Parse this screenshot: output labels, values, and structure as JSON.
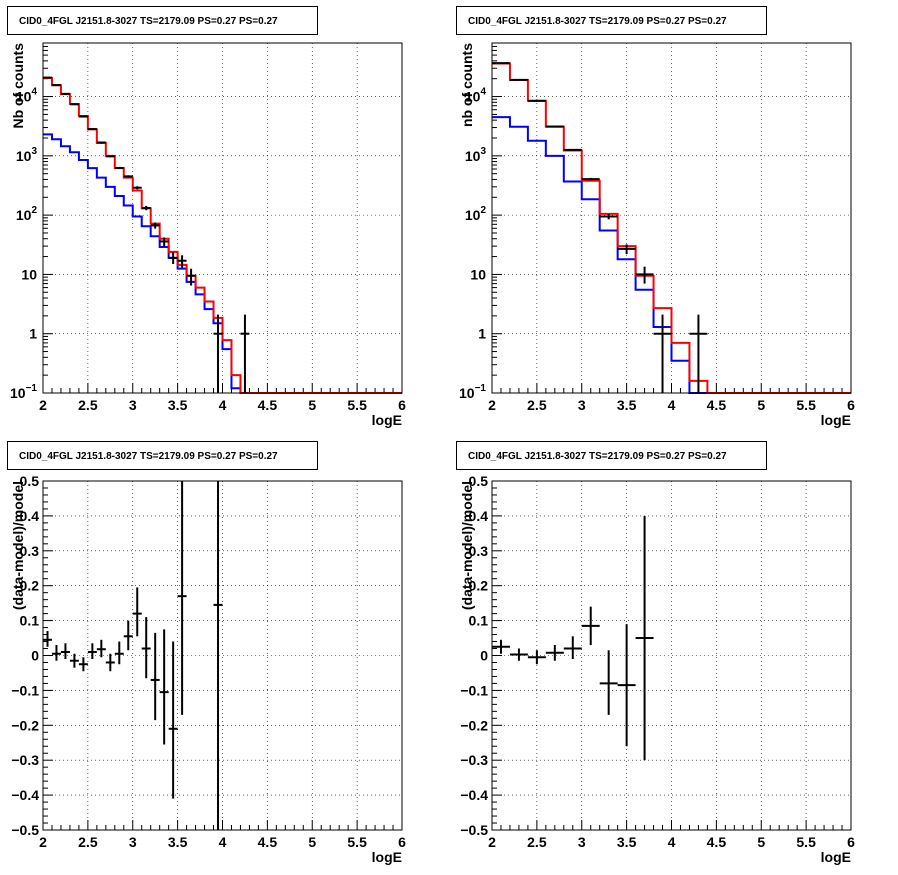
{
  "chart_data": [
    {
      "id": "top-left",
      "type": "line",
      "title": "CID0_4FGL J2151.8-3027 TS=2179.09 PS=0.27 PS=0.27",
      "xlabel": "logE",
      "ylabel": "Nb of counts",
      "xlim": [
        2,
        6
      ],
      "ylim": [
        0.1,
        80000
      ],
      "yscale": "log",
      "grid": true,
      "x_ticks": [
        "2",
        "2.5",
        "3",
        "3.5",
        "4",
        "4.5",
        "5",
        "5.5",
        "6"
      ],
      "y_ticks": [
        {
          "value": 0.1,
          "base": "10",
          "exp": "−1"
        },
        {
          "value": 1,
          "base": "1",
          "exp": ""
        },
        {
          "value": 10,
          "base": "10",
          "exp": ""
        },
        {
          "value": 100,
          "base": "10",
          "exp": "2"
        },
        {
          "value": 1000,
          "base": "10",
          "exp": "3"
        },
        {
          "value": 10000,
          "base": "10",
          "exp": "4"
        }
      ],
      "bin_edges": [
        2.0,
        2.1,
        2.2,
        2.3,
        2.4,
        2.5,
        2.6,
        2.7,
        2.8,
        2.9,
        3.0,
        3.1,
        3.2,
        3.3,
        3.4,
        3.5,
        3.6,
        3.7,
        3.8,
        3.9,
        4.0,
        4.1,
        4.2,
        4.3,
        4.4,
        4.5,
        4.6,
        4.7,
        4.8,
        4.9,
        5.0,
        5.1,
        5.2,
        5.3,
        5.4,
        5.5,
        5.6,
        5.7,
        5.8,
        5.9,
        6.0
      ],
      "series": [
        {
          "color": "#0000ff",
          "values": [
            2300,
            1900,
            1450,
            1150,
            850,
            620,
            430,
            300,
            210,
            145,
            95,
            65,
            44,
            29,
            19,
            12.5,
            7.5,
            4.6,
            2.6,
            1.5,
            0.55,
            0.12,
            0.1,
            0.1,
            0.1,
            0.1,
            0.1,
            0.1,
            0.1,
            0.1,
            0.1,
            0.1,
            0.1,
            0.1,
            0.1,
            0.1,
            0.1,
            0.1,
            0.1,
            0.1
          ]
        },
        {
          "color": "#ff0000",
          "values": [
            20500,
            15500,
            11000,
            7500,
            4700,
            2800,
            1650,
            1000,
            620,
            430,
            260,
            130,
            72,
            40,
            24,
            14.5,
            9.5,
            6,
            3.5,
            1.85,
            0.78,
            0.2,
            0.1,
            0.1,
            0.1,
            0.1,
            0.1,
            0.1,
            0.1,
            0.1,
            0.1,
            0.1,
            0.1,
            0.1,
            0.1,
            0.1,
            0.1,
            0.1,
            0.1,
            0.1
          ]
        }
      ],
      "data_points": [
        {
          "x": 2.05,
          "y": 20900,
          "xerr": 0.05,
          "ylo": 20760,
          "yhi": 21040
        },
        {
          "x": 2.15,
          "y": 15600,
          "xerr": 0.05,
          "ylo": 15480,
          "yhi": 15720
        },
        {
          "x": 2.25,
          "y": 11100,
          "xerr": 0.05,
          "ylo": 11000,
          "yhi": 11200
        },
        {
          "x": 2.35,
          "y": 7400,
          "xerr": 0.05,
          "ylo": 7320,
          "yhi": 7480
        },
        {
          "x": 2.45,
          "y": 4600,
          "xerr": 0.05,
          "ylo": 4530,
          "yhi": 4670
        },
        {
          "x": 2.55,
          "y": 2830,
          "xerr": 0.05,
          "ylo": 2780,
          "yhi": 2880
        },
        {
          "x": 2.65,
          "y": 1680,
          "xerr": 0.05,
          "ylo": 1640,
          "yhi": 1720
        },
        {
          "x": 2.75,
          "y": 980,
          "xerr": 0.05,
          "ylo": 950,
          "yhi": 1010
        },
        {
          "x": 2.85,
          "y": 625,
          "xerr": 0.05,
          "ylo": 600,
          "yhi": 650
        },
        {
          "x": 2.95,
          "y": 450,
          "xerr": 0.05,
          "ylo": 430,
          "yhi": 470
        },
        {
          "x": 3.05,
          "y": 290,
          "xerr": 0.05,
          "ylo": 273,
          "yhi": 307
        },
        {
          "x": 3.15,
          "y": 132,
          "xerr": 0.05,
          "ylo": 121,
          "yhi": 143
        },
        {
          "x": 3.25,
          "y": 67,
          "xerr": 0.05,
          "ylo": 59,
          "yhi": 75
        },
        {
          "x": 3.35,
          "y": 36,
          "xerr": 0.05,
          "ylo": 30,
          "yhi": 42
        },
        {
          "x": 3.45,
          "y": 19,
          "xerr": 0.05,
          "ylo": 15,
          "yhi": 23.5
        },
        {
          "x": 3.55,
          "y": 17,
          "xerr": 0.05,
          "ylo": 13,
          "yhi": 21
        },
        {
          "x": 3.65,
          "y": 9.5,
          "xerr": 0.05,
          "ylo": 6.5,
          "yhi": 12.5
        },
        {
          "x": 3.95,
          "y": 1,
          "xerr": 0.05,
          "ylo": 0.1,
          "yhi": 2.1
        },
        {
          "x": 4.25,
          "y": 1,
          "xerr": 0.05,
          "ylo": 0.1,
          "yhi": 2.1
        }
      ]
    },
    {
      "id": "top-right",
      "type": "line",
      "title": "CID0_4FGL J2151.8-3027 TS=2179.09 PS=0.27 PS=0.27",
      "xlabel": "logE",
      "ylabel": "nb of counts",
      "xlim": [
        2,
        6
      ],
      "ylim": [
        0.1,
        80000
      ],
      "yscale": "log",
      "grid": true,
      "x_ticks": [
        "2",
        "2.5",
        "3",
        "3.5",
        "4",
        "4.5",
        "5",
        "5.5",
        "6"
      ],
      "y_ticks": [
        {
          "value": 0.1,
          "base": "10",
          "exp": "−1"
        },
        {
          "value": 1,
          "base": "1",
          "exp": ""
        },
        {
          "value": 10,
          "base": "10",
          "exp": ""
        },
        {
          "value": 100,
          "base": "10",
          "exp": "2"
        },
        {
          "value": 1000,
          "base": "10",
          "exp": "3"
        },
        {
          "value": 10000,
          "base": "10",
          "exp": "4"
        }
      ],
      "bin_edges": [
        2.0,
        2.2,
        2.4,
        2.6,
        2.8,
        3.0,
        3.2,
        3.4,
        3.6,
        3.8,
        4.0,
        4.2,
        4.4,
        4.6,
        4.8,
        5.0,
        5.2,
        5.4,
        5.6,
        5.8,
        6.0
      ],
      "series": [
        {
          "color": "#0000ff",
          "values": [
            4500,
            3100,
            1800,
            1000,
            370,
            185,
            55,
            18,
            5.5,
            1.3,
            0.35,
            0.1,
            0.1,
            0.1,
            0.1,
            0.1,
            0.1,
            0.1,
            0.1,
            0.1
          ]
        },
        {
          "color": "#ff0000",
          "values": [
            36000,
            19000,
            8500,
            3100,
            1230,
            380,
            105,
            30,
            9.5,
            2.7,
            0.7,
            0.16,
            0.1,
            0.1,
            0.1,
            0.1,
            0.1,
            0.1,
            0.1,
            0.1
          ]
        }
      ],
      "data_points": [
        {
          "x": 2.1,
          "y": 36700,
          "xerr": 0.1,
          "ylo": 36500,
          "yhi": 36900
        },
        {
          "x": 2.3,
          "y": 19100,
          "xerr": 0.1,
          "ylo": 18960,
          "yhi": 19240
        },
        {
          "x": 2.5,
          "y": 8440,
          "xerr": 0.1,
          "ylo": 8350,
          "yhi": 8530
        },
        {
          "x": 2.7,
          "y": 3130,
          "xerr": 0.1,
          "ylo": 3080,
          "yhi": 3180
        },
        {
          "x": 2.9,
          "y": 1260,
          "xerr": 0.1,
          "ylo": 1225,
          "yhi": 1295
        },
        {
          "x": 3.1,
          "y": 405,
          "xerr": 0.1,
          "ylo": 385,
          "yhi": 425
        },
        {
          "x": 3.3,
          "y": 95,
          "xerr": 0.1,
          "ylo": 85,
          "yhi": 105
        },
        {
          "x": 3.5,
          "y": 27,
          "xerr": 0.1,
          "ylo": 22,
          "yhi": 32
        },
        {
          "x": 3.7,
          "y": 10,
          "xerr": 0.1,
          "ylo": 7,
          "yhi": 13.5
        },
        {
          "x": 3.9,
          "y": 1,
          "xerr": 0.1,
          "ylo": 0.1,
          "yhi": 2.1
        },
        {
          "x": 4.3,
          "y": 1,
          "xerr": 0.1,
          "ylo": 0.1,
          "yhi": 2.1
        }
      ]
    },
    {
      "id": "bottom-left",
      "type": "scatter",
      "title": "CID0_4FGL J2151.8-3027 TS=2179.09 PS=0.27 PS=0.27",
      "xlabel": "logE",
      "ylabel": "(data-model)/model",
      "xlim": [
        2,
        6
      ],
      "ylim": [
        -0.5,
        0.5
      ],
      "yscale": "linear",
      "grid": true,
      "x_ticks": [
        "2",
        "2.5",
        "3",
        "3.5",
        "4",
        "4.5",
        "5",
        "5.5",
        "6"
      ],
      "y_ticks": [
        "−0.5",
        "−0.4",
        "−0.3",
        "−0.2",
        "−0.1",
        "0",
        "0.1",
        "0.2",
        "0.3",
        "0.4",
        "0.5"
      ],
      "data_points": [
        {
          "x": 2.05,
          "y": 0.045,
          "xerr": 0.05,
          "ylo": 0.025,
          "yhi": 0.07
        },
        {
          "x": 2.15,
          "y": 0.005,
          "xerr": 0.05,
          "ylo": -0.015,
          "yhi": 0.03
        },
        {
          "x": 2.25,
          "y": 0.01,
          "xerr": 0.05,
          "ylo": -0.01,
          "yhi": 0.035
        },
        {
          "x": 2.35,
          "y": -0.015,
          "xerr": 0.05,
          "ylo": -0.035,
          "yhi": 0.005
        },
        {
          "x": 2.45,
          "y": -0.025,
          "xerr": 0.05,
          "ylo": -0.045,
          "yhi": -0.005
        },
        {
          "x": 2.55,
          "y": 0.01,
          "xerr": 0.05,
          "ylo": -0.01,
          "yhi": 0.035
        },
        {
          "x": 2.65,
          "y": 0.018,
          "xerr": 0.05,
          "ylo": -0.005,
          "yhi": 0.045
        },
        {
          "x": 2.75,
          "y": -0.02,
          "xerr": 0.05,
          "ylo": -0.045,
          "yhi": 0.005
        },
        {
          "x": 2.85,
          "y": 0.005,
          "xerr": 0.05,
          "ylo": -0.025,
          "yhi": 0.04
        },
        {
          "x": 2.95,
          "y": 0.055,
          "xerr": 0.05,
          "ylo": 0.015,
          "yhi": 0.1
        },
        {
          "x": 3.05,
          "y": 0.12,
          "xerr": 0.05,
          "ylo": 0.055,
          "yhi": 0.195
        },
        {
          "x": 3.15,
          "y": 0.02,
          "xerr": 0.05,
          "ylo": -0.065,
          "yhi": 0.11
        },
        {
          "x": 3.25,
          "y": -0.07,
          "xerr": 0.05,
          "ylo": -0.185,
          "yhi": 0.065
        },
        {
          "x": 3.35,
          "y": -0.105,
          "xerr": 0.05,
          "ylo": -0.255,
          "yhi": 0.075
        },
        {
          "x": 3.45,
          "y": -0.21,
          "xerr": 0.05,
          "ylo": -0.41,
          "yhi": 0.04
        },
        {
          "x": 3.55,
          "y": 0.17,
          "xerr": 0.05,
          "ylo": -0.17,
          "yhi": 0.5
        },
        {
          "x": 3.95,
          "y": 0.145,
          "xerr": 0.05,
          "ylo": -0.5,
          "yhi": 0.5
        }
      ]
    },
    {
      "id": "bottom-right",
      "type": "scatter",
      "title": "CID0_4FGL J2151.8-3027 TS=2179.09 PS=0.27 PS=0.27",
      "xlabel": "logE",
      "ylabel": "(data-model)/model",
      "xlim": [
        2,
        6
      ],
      "ylim": [
        -0.5,
        0.5
      ],
      "yscale": "linear",
      "grid": true,
      "x_ticks": [
        "2",
        "2.5",
        "3",
        "3.5",
        "4",
        "4.5",
        "5",
        "5.5",
        "6"
      ],
      "y_ticks": [
        "−0.5",
        "−0.4",
        "−0.3",
        "−0.2",
        "−0.1",
        "0",
        "0.1",
        "0.2",
        "0.3",
        "0.4",
        "0.5"
      ],
      "data_points": [
        {
          "x": 2.1,
          "y": 0.025,
          "xerr": 0.1,
          "ylo": 0.005,
          "yhi": 0.045
        },
        {
          "x": 2.3,
          "y": 0.003,
          "xerr": 0.1,
          "ylo": -0.015,
          "yhi": 0.02
        },
        {
          "x": 2.5,
          "y": -0.005,
          "xerr": 0.1,
          "ylo": -0.025,
          "yhi": 0.015
        },
        {
          "x": 2.7,
          "y": 0.008,
          "xerr": 0.1,
          "ylo": -0.015,
          "yhi": 0.03
        },
        {
          "x": 2.9,
          "y": 0.02,
          "xerr": 0.1,
          "ylo": -0.01,
          "yhi": 0.055
        },
        {
          "x": 3.1,
          "y": 0.085,
          "xerr": 0.1,
          "ylo": 0.03,
          "yhi": 0.14
        },
        {
          "x": 3.3,
          "y": -0.08,
          "xerr": 0.1,
          "ylo": -0.17,
          "yhi": 0.015
        },
        {
          "x": 3.5,
          "y": -0.085,
          "xerr": 0.1,
          "ylo": -0.26,
          "yhi": 0.09
        },
        {
          "x": 3.7,
          "y": 0.05,
          "xerr": 0.1,
          "ylo": -0.3,
          "yhi": 0.4
        }
      ]
    }
  ]
}
